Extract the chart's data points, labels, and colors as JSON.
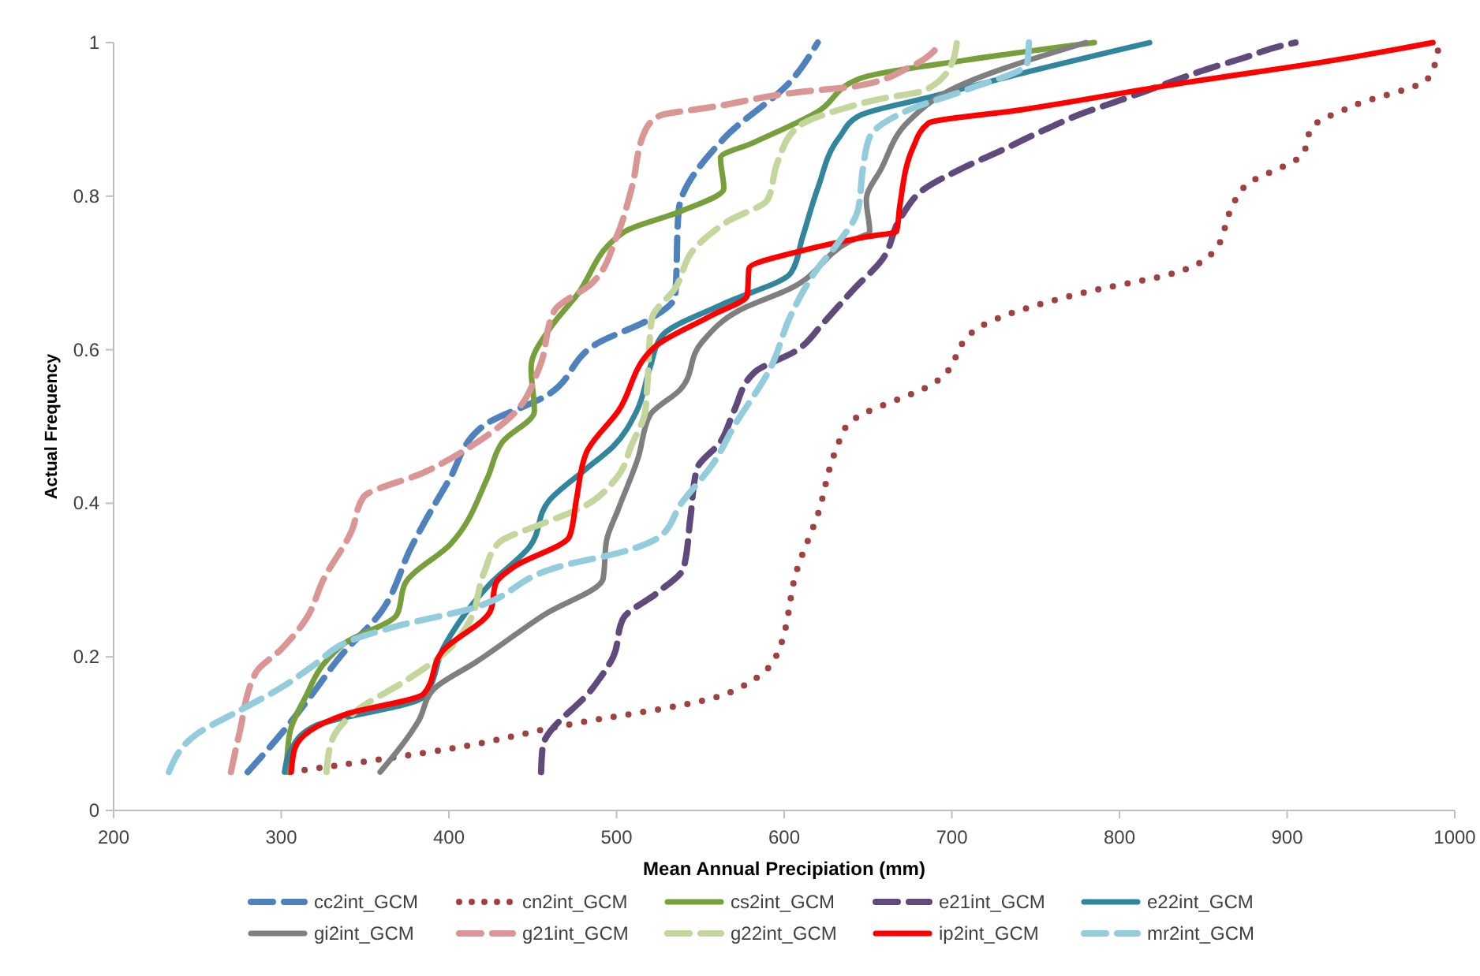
{
  "chart_data": {
    "type": "line",
    "xlabel": "Mean Annual Precipiation (mm)",
    "ylabel": "Actual Frequency",
    "xlim": [
      200,
      1000
    ],
    "xticks": [
      200,
      300,
      400,
      500,
      600,
      700,
      800,
      900,
      1000
    ],
    "ylim": [
      0,
      1
    ],
    "yticks": [
      0,
      0.2,
      0.4,
      0.6,
      0.8,
      1
    ],
    "grid": false,
    "legend": "bottom",
    "marker": "none",
    "series": [
      {
        "name": "cc2int_GCM",
        "color": "#4f81bd",
        "line_style": "dashed",
        "x": [
          280,
          300,
          318,
          335,
          359,
          378,
          400,
          420,
          458,
          490,
          520,
          535,
          537,
          564,
          604,
          620
        ],
        "values": [
          0.05,
          0.1,
          0.15,
          0.2,
          0.257,
          0.345,
          0.43,
          0.5,
          0.54,
          0.61,
          0.64,
          0.67,
          0.78,
          0.875,
          0.95,
          1.0
        ]
      },
      {
        "name": "cn2int_GCM",
        "color": "#a04040",
        "line_style": "dotted",
        "x": [
          305,
          338,
          400,
          467,
          557,
          583,
          595,
          608,
          620,
          631,
          639,
          689,
          717,
          780,
          833,
          858,
          866,
          876,
          909,
          915,
          940,
          984,
          990
        ],
        "values": [
          0.05,
          0.06,
          0.08,
          0.11,
          0.146,
          0.172,
          0.2,
          0.316,
          0.385,
          0.47,
          0.505,
          0.556,
          0.63,
          0.675,
          0.7,
          0.733,
          0.78,
          0.815,
          0.854,
          0.89,
          0.918,
          0.953,
          0.99
        ]
      },
      {
        "name": "cs2int_GCM",
        "color": "#77a03c",
        "line_style": "solid",
        "x": [
          303,
          305,
          315,
          325,
          338,
          369,
          374,
          401,
          423,
          432,
          451,
          449,
          461,
          476,
          505,
          538,
          564,
          562,
          582,
          620,
          645,
          708,
          785
        ],
        "values": [
          0.05,
          0.1,
          0.15,
          0.19,
          0.218,
          0.255,
          0.296,
          0.347,
          0.433,
          0.48,
          0.52,
          0.577,
          0.63,
          0.67,
          0.754,
          0.78,
          0.81,
          0.85,
          0.87,
          0.91,
          0.953,
          0.977,
          1.0
        ]
      },
      {
        "name": "e21int_GCM",
        "color": "#604a7b",
        "line_style": "dashed",
        "x": [
          455,
          456,
          486,
          498,
          504,
          524,
          540,
          544,
          548,
          562,
          570,
          582,
          608,
          623,
          642,
          658,
          670,
          684,
          706,
          730,
          754,
          777,
          802,
          826,
          849,
          874,
          897,
          905
        ],
        "values": [
          0.05,
          0.083,
          0.16,
          0.2,
          0.25,
          0.283,
          0.316,
          0.38,
          0.445,
          0.48,
          0.52,
          0.57,
          0.6,
          0.634,
          0.68,
          0.716,
          0.774,
          0.81,
          0.836,
          0.86,
          0.885,
          0.907,
          0.926,
          0.945,
          0.963,
          0.98,
          0.996,
          1.0
        ]
      },
      {
        "name": "e22int_GCM",
        "color": "#31859c",
        "line_style": "solid",
        "x": [
          302,
          306,
          320,
          385,
          397,
          425,
          448,
          460,
          482,
          498,
          512,
          520,
          527,
          564,
          604,
          611,
          620,
          633,
          645,
          689,
          740,
          818
        ],
        "values": [
          0.05,
          0.08,
          0.11,
          0.148,
          0.213,
          0.296,
          0.343,
          0.404,
          0.445,
          0.474,
          0.52,
          0.577,
          0.618,
          0.66,
          0.7,
          0.747,
          0.81,
          0.877,
          0.905,
          0.93,
          0.959,
          1.0
        ]
      },
      {
        "name": "gi2int_GCM",
        "color": "#7f7f7f",
        "line_style": "solid",
        "x": [
          359,
          382,
          391,
          416,
          457,
          492,
          494,
          501,
          513,
          520,
          538,
          551,
          573,
          604,
          639,
          651,
          649,
          658,
          674,
          699,
          780
        ],
        "values": [
          0.05,
          0.117,
          0.158,
          0.193,
          0.255,
          0.302,
          0.351,
          0.392,
          0.46,
          0.515,
          0.548,
          0.61,
          0.651,
          0.68,
          0.741,
          0.754,
          0.795,
          0.836,
          0.897,
          0.938,
          1.0
        ]
      },
      {
        "name": "g21int_GCM",
        "color": "#d99694",
        "line_style": "dashed",
        "x": [
          270,
          275,
          285,
          300,
          315,
          325,
          342,
          349,
          385,
          413,
          438,
          454,
          463,
          485,
          500,
          509,
          517,
          526,
          557,
          611,
          642,
          674,
          694
        ],
        "values": [
          0.05,
          0.1,
          0.18,
          0.21,
          0.25,
          0.3,
          0.364,
          0.408,
          0.44,
          0.474,
          0.515,
          0.577,
          0.651,
          0.686,
          0.747,
          0.81,
          0.885,
          0.905,
          0.916,
          0.936,
          0.943,
          0.967,
          1.0
        ]
      },
      {
        "name": "g22int_GCM",
        "color": "#c3d69b",
        "line_style": "dashed",
        "x": [
          327,
          330,
          345,
          375,
          400,
          412,
          421,
          430,
          454,
          477,
          500,
          509,
          517,
          518,
          521,
          535,
          547,
          567,
          590,
          596,
          608,
          632,
          656,
          684,
          700,
          703
        ],
        "values": [
          0.05,
          0.09,
          0.13,
          0.17,
          0.21,
          0.245,
          0.31,
          0.349,
          0.372,
          0.392,
          0.433,
          0.476,
          0.518,
          0.542,
          0.64,
          0.68,
          0.733,
          0.768,
          0.795,
          0.844,
          0.89,
          0.912,
          0.926,
          0.938,
          0.973,
          1.0
        ]
      },
      {
        "name": "ip2int_GCM",
        "color": "#ff0000",
        "line_style": "solid",
        "x": [
          306,
          308,
          338,
          385,
          396,
          425,
          428,
          438,
          472,
          476,
          482,
          501,
          523,
          557,
          578,
          579,
          607,
          649,
          667,
          669,
          677,
          686,
          740,
          834,
          928,
          987
        ],
        "values": [
          0.05,
          0.08,
          0.125,
          0.152,
          0.207,
          0.261,
          0.296,
          0.316,
          0.357,
          0.404,
          0.466,
          0.52,
          0.604,
          0.645,
          0.671,
          0.706,
          0.727,
          0.747,
          0.754,
          0.788,
          0.864,
          0.895,
          0.912,
          0.946,
          0.977,
          1.0
        ]
      },
      {
        "name": "mr2int_GCM",
        "color": "#93cddd",
        "line_style": "dashed",
        "x": [
          233,
          250,
          275,
          300,
          320,
          340,
          369,
          410,
          470,
          504,
          526,
          538,
          558,
          570,
          592,
          604,
          620,
          630,
          644,
          647,
          651,
          674,
          708,
          745,
          746
        ],
        "values": [
          0.05,
          0.1,
          0.13,
          0.16,
          0.19,
          0.22,
          0.24,
          0.261,
          0.32,
          0.337,
          0.357,
          0.398,
          0.453,
          0.5,
          0.577,
          0.645,
          0.706,
          0.733,
          0.782,
          0.836,
          0.877,
          0.912,
          0.938,
          0.973,
          1.0
        ]
      }
    ]
  }
}
